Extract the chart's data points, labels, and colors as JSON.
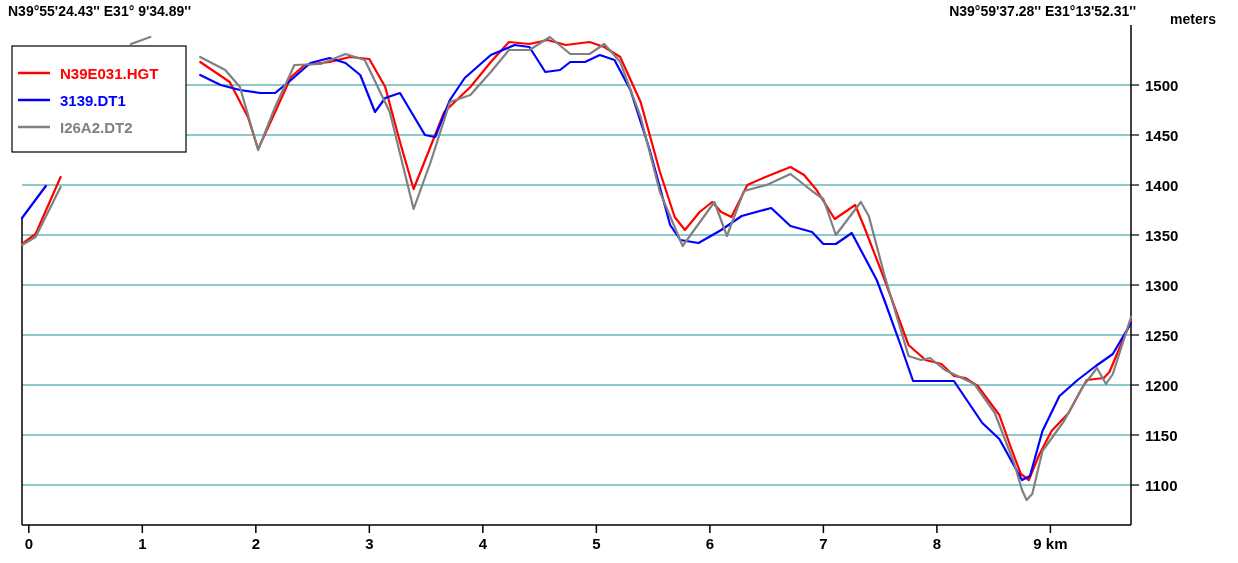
{
  "chart_data": {
    "type": "line",
    "ylabel": "meters",
    "annotations": [
      "N39°55'24.43'' E31° 9'34.89''",
      "N39°59'37.28'' E31°13'52.31''"
    ],
    "xlim": [
      -0.06,
      9.71
    ],
    "xticks": [
      0,
      1,
      2,
      3,
      4,
      5,
      6,
      7,
      8,
      {
        "value": 9,
        "label": "9 km"
      }
    ],
    "ylim": [
      1060,
      1560
    ],
    "yticks": [
      1100,
      1150,
      1200,
      1250,
      1300,
      1350,
      1400,
      1450,
      1500
    ],
    "grid": "y",
    "legend": "top left",
    "marker": "none",
    "line_style": "solid",
    "series": [
      {
        "name": "N39E031.HGT",
        "color": "#ff0000",
        "x": [
          -0.06,
          0.06,
          0.28,
          0.45,
          0.63,
          0.9,
          1.07,
          1.29,
          1.51,
          1.77,
          1.93,
          2.02,
          2.13,
          2.31,
          2.43,
          2.65,
          2.83,
          3.0,
          3.14,
          3.27,
          3.39,
          3.52,
          3.66,
          3.89,
          4.07,
          4.23,
          4.41,
          4.57,
          4.73,
          4.94,
          5.07,
          5.21,
          5.39,
          5.56,
          5.69,
          5.78,
          5.91,
          6.02,
          6.1,
          6.19,
          6.33,
          6.49,
          6.71,
          6.83,
          6.94,
          7.1,
          7.19,
          7.28,
          7.36,
          7.54,
          7.75,
          7.9,
          8.04,
          8.15,
          8.25,
          8.36,
          8.55,
          8.65,
          8.74,
          8.81,
          8.9,
          9.01,
          9.16,
          9.25,
          9.32,
          9.47,
          9.52,
          9.62,
          9.71
        ],
        "values": [
          1341,
          1351,
          1408,
          null,
          null,
          null,
          null,
          null,
          1523,
          1503,
          1468,
          1436,
          1463,
          1508,
          1520,
          1523,
          1528,
          1526,
          1498,
          1443,
          1396,
          1433,
          1473,
          1498,
          1523,
          1543,
          1541,
          1545,
          1540,
          1543,
          1538,
          1528,
          1483,
          1413,
          1368,
          1355,
          1373,
          1383,
          1373,
          1368,
          1400,
          1408,
          1418,
          1410,
          1395,
          1366,
          1373,
          1380,
          1358,
          1305,
          1240,
          1225,
          1221,
          1209,
          1207,
          1199,
          1170,
          1138,
          1111,
          1105,
          1130,
          1154,
          1172,
          1191,
          1205,
          1207,
          1213,
          1240,
          1264
        ]
      },
      {
        "name": "3139.DT1",
        "color": "#0000ff",
        "x": [
          -0.06,
          0.15,
          0.37,
          0.54,
          0.72,
          0.99,
          1.24,
          1.51,
          1.69,
          1.86,
          2.04,
          2.17,
          2.31,
          2.48,
          2.65,
          2.79,
          2.92,
          3.05,
          3.14,
          3.27,
          3.49,
          3.58,
          3.71,
          3.84,
          4.07,
          4.28,
          4.41,
          4.55,
          4.68,
          4.77,
          4.9,
          5.03,
          5.16,
          5.3,
          5.47,
          5.65,
          5.74,
          5.9,
          6.1,
          6.28,
          6.54,
          6.71,
          6.9,
          7.0,
          7.11,
          7.25,
          7.47,
          7.54,
          7.68,
          7.79,
          8.15,
          8.4,
          8.55,
          8.75,
          8.82,
          8.93,
          9.08,
          9.24,
          9.4,
          9.55,
          9.71
        ],
        "values": [
          1367,
          1399,
          null,
          null,
          null,
          null,
          null,
          1510,
          1500,
          1495,
          1492,
          1492,
          1505,
          1522,
          1527,
          1522,
          1510,
          1473,
          1487,
          1492,
          1450,
          1448,
          1485,
          1507,
          1530,
          1540,
          1538,
          1513,
          1515,
          1523,
          1523,
          1530,
          1525,
          1495,
          1435,
          1360,
          1345,
          1342,
          1355,
          1369,
          1377,
          1359,
          1353,
          1341,
          1341,
          1352,
          1305,
          1284,
          1240,
          1204,
          1204,
          1162,
          1146,
          1105,
          1109,
          1154,
          1189,
          1205,
          1219,
          1231,
          1262
        ]
      },
      {
        "name": "I26A2.DT2",
        "color": "#808080",
        "x": [
          -0.06,
          0.06,
          0.28,
          0.45,
          0.63,
          0.9,
          1.07,
          1.29,
          1.51,
          1.73,
          1.86,
          2.02,
          2.17,
          2.34,
          2.57,
          2.79,
          2.96,
          3.18,
          3.39,
          3.54,
          3.71,
          3.89,
          4.07,
          4.23,
          4.41,
          4.59,
          4.77,
          4.94,
          5.07,
          5.21,
          5.39,
          5.56,
          5.76,
          6.04,
          6.15,
          6.3,
          6.5,
          6.71,
          6.9,
          7.0,
          7.11,
          7.33,
          7.4,
          7.54,
          7.75,
          7.86,
          7.94,
          8.07,
          8.22,
          8.33,
          8.51,
          8.68,
          8.75,
          8.79,
          8.84,
          8.93,
          9.12,
          9.29,
          9.41,
          9.49,
          9.55,
          9.71
        ],
        "values": [
          1340,
          1348,
          1398,
          null,
          null,
          1541,
          1548,
          null,
          1528,
          1515,
          1498,
          1435,
          1478,
          1520,
          1521,
          1531,
          1525,
          1473,
          1376,
          1423,
          1483,
          1490,
          1513,
          1535,
          1535,
          1548,
          1531,
          1531,
          1541,
          1523,
          1468,
          1393,
          1339,
          1383,
          1349,
          1394,
          1400,
          1411,
          1394,
          1386,
          1350,
          1383,
          1369,
          1309,
          1229,
          1225,
          1227,
          1215,
          1207,
          1201,
          1172,
          1122,
          1095,
          1085,
          1091,
          1134,
          1164,
          1199,
          1217,
          1201,
          1211,
          1268
        ]
      }
    ]
  }
}
